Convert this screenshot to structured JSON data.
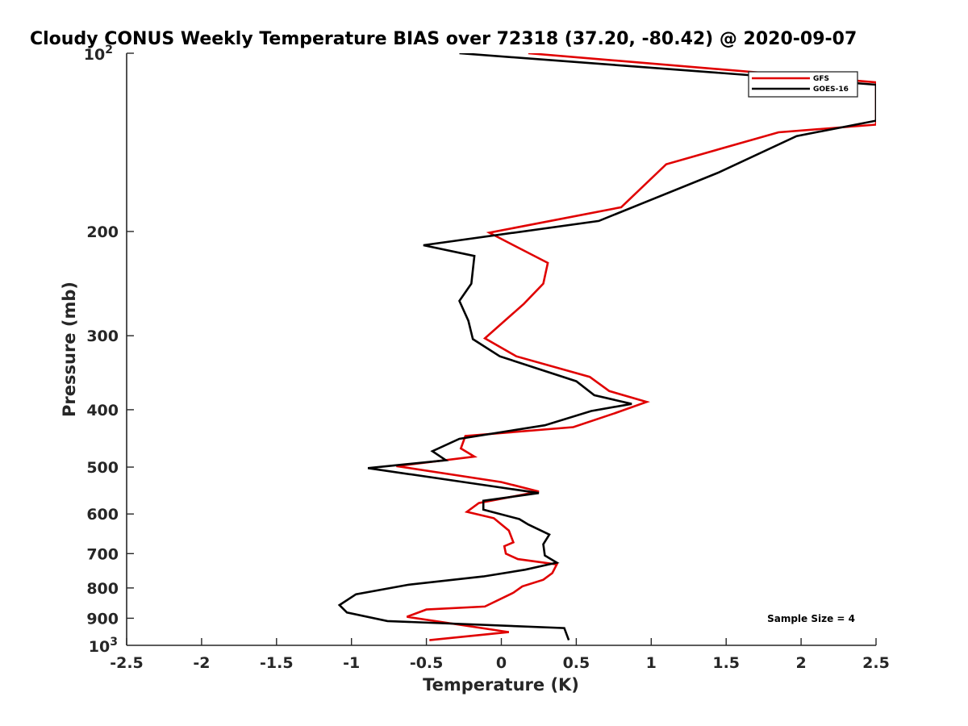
{
  "chart_data": {
    "type": "line",
    "title": "Cloudy CONUS Weekly Temperature BIAS over 72318 (37.20, -80.42) @ 2020-09-07",
    "xlabel": "Temperature (K)",
    "ylabel": "Pressure (mb)",
    "xlim": [
      -2.5,
      2.5
    ],
    "ylim": [
      100,
      1000
    ],
    "yscale": "log",
    "y_reversed": true,
    "grid": false,
    "x_ticks": [
      -2.5,
      -2,
      -1.5,
      -1,
      -0.5,
      0,
      0.5,
      1,
      1.5,
      2,
      2.5
    ],
    "x_tick_labels": [
      "-2.5",
      "-2",
      "-1.5",
      "-1",
      "-0.5",
      "0",
      "0.5",
      "1",
      "1.5",
      "2",
      "2.5"
    ],
    "y_ticks": [
      200,
      300,
      400,
      500,
      600,
      700,
      800,
      900
    ],
    "y_tick_labels": [
      "200",
      "300",
      "400",
      "500",
      "600",
      "700",
      "800",
      "900"
    ],
    "y_top_label": {
      "base": "10",
      "exp": "2"
    },
    "y_bottom_label": {
      "base": "10",
      "exp": "3"
    },
    "legend_position": "top-right",
    "annotation": "Sample Size = 4",
    "series": [
      {
        "name": "GFS",
        "color": "#e00000",
        "points": [
          [
            0.18,
            100
          ],
          [
            2.5,
            112
          ],
          [
            2.5,
            132
          ],
          [
            1.85,
            136
          ],
          [
            1.1,
            154
          ],
          [
            0.8,
            182
          ],
          [
            -0.08,
            201
          ],
          [
            0.31,
            226
          ],
          [
            0.28,
            245
          ],
          [
            0.15,
            265
          ],
          [
            -0.11,
            303
          ],
          [
            0.1,
            325
          ],
          [
            0.59,
            352
          ],
          [
            0.72,
            372
          ],
          [
            0.97,
            388
          ],
          [
            0.75,
            406
          ],
          [
            0.48,
            428
          ],
          [
            -0.24,
            443
          ],
          [
            -0.27,
            465
          ],
          [
            -0.18,
            480
          ],
          [
            -0.7,
            498
          ],
          [
            0,
            530
          ],
          [
            0.25,
            550
          ],
          [
            -0.15,
            575
          ],
          [
            -0.23,
            595
          ],
          [
            -0.05,
            610
          ],
          [
            0.05,
            640
          ],
          [
            0.08,
            670
          ],
          [
            0.02,
            680
          ],
          [
            0.03,
            700
          ],
          [
            0.11,
            715
          ],
          [
            0.37,
            730
          ],
          [
            0.34,
            755
          ],
          [
            0.28,
            775
          ],
          [
            0.14,
            795
          ],
          [
            0.08,
            815
          ],
          [
            -0.11,
            860
          ],
          [
            -0.5,
            870
          ],
          [
            -0.63,
            895
          ],
          [
            0.05,
            950
          ],
          [
            -0.48,
            980
          ]
        ]
      },
      {
        "name": "GOES-16",
        "color": "#000000",
        "points": [
          [
            -0.28,
            100
          ],
          [
            2.5,
            113
          ],
          [
            2.5,
            130
          ],
          [
            1.97,
            138
          ],
          [
            1.45,
            159
          ],
          [
            0.65,
            192
          ],
          [
            -0.52,
            211
          ],
          [
            -0.18,
            220
          ],
          [
            -0.2,
            245
          ],
          [
            -0.28,
            262
          ],
          [
            -0.22,
            283
          ],
          [
            -0.19,
            304
          ],
          [
            -0.01,
            325
          ],
          [
            0.5,
            358
          ],
          [
            0.62,
            378
          ],
          [
            0.87,
            391
          ],
          [
            0.6,
            402
          ],
          [
            0.29,
            425
          ],
          [
            -0.28,
            448
          ],
          [
            -0.46,
            470
          ],
          [
            -0.37,
            487
          ],
          [
            -0.89,
            502
          ],
          [
            -0.14,
            535
          ],
          [
            0.25,
            553
          ],
          [
            -0.12,
            570
          ],
          [
            -0.12,
            590
          ],
          [
            0.12,
            612
          ],
          [
            0.18,
            625
          ],
          [
            0.32,
            650
          ],
          [
            0.28,
            675
          ],
          [
            0.29,
            705
          ],
          [
            0.37,
            725
          ],
          [
            0.16,
            745
          ],
          [
            -0.12,
            765
          ],
          [
            -0.62,
            790
          ],
          [
            -0.97,
            820
          ],
          [
            -1.08,
            855
          ],
          [
            -1.03,
            880
          ],
          [
            -0.76,
            910
          ],
          [
            0.42,
            935
          ],
          [
            0.45,
            980
          ]
        ]
      }
    ]
  }
}
